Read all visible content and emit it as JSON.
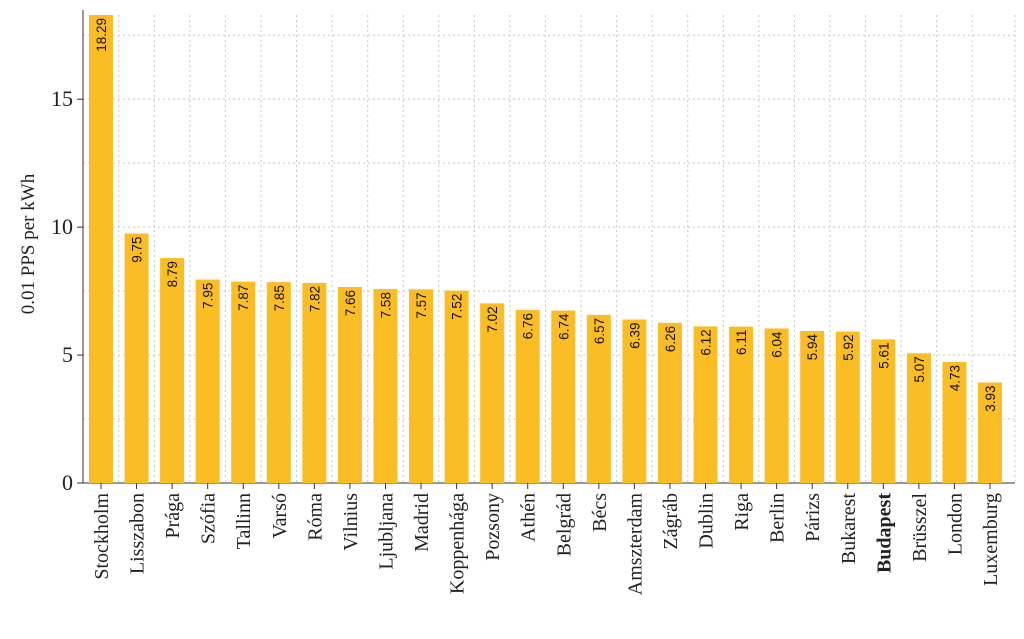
{
  "chart_data": {
    "type": "bar",
    "ylabel": "0.01 PPS per kWh",
    "ylim": [
      0,
      18.29
    ],
    "yticks": [
      0,
      5,
      10,
      15
    ],
    "grid": true,
    "bar_color": "#fbbd26",
    "highlight_category": "Budapest",
    "categories": [
      "Stockholm",
      "Lisszabon",
      "Prága",
      "Szófia",
      "Tallinn",
      "Varsó",
      "Róma",
      "Vilnius",
      "Ljubljana",
      "Madrid",
      "Koppenhága",
      "Pozsony",
      "Athén",
      "Belgrád",
      "Bécs",
      "Amszterdam",
      "Zágráb",
      "Dublin",
      "Riga",
      "Berlin",
      "Párizs",
      "Bukarest",
      "Budapest",
      "Brüsszel",
      "London",
      "Luxemburg"
    ],
    "values": [
      18.29,
      9.75,
      8.79,
      7.95,
      7.87,
      7.85,
      7.82,
      7.66,
      7.58,
      7.57,
      7.52,
      7.02,
      6.76,
      6.74,
      6.57,
      6.39,
      6.26,
      6.12,
      6.11,
      6.04,
      5.94,
      5.92,
      5.61,
      5.07,
      4.73,
      3.93
    ],
    "value_labels": [
      "18.29",
      "9.75",
      "8.79",
      "7.95",
      "7.87",
      "7.85",
      "7.82",
      "7.66",
      "7.58",
      "7.57",
      "7.52",
      "7.02",
      "6.76",
      "6.74",
      "6.57",
      "6.39",
      "6.26",
      "6.12",
      "6.11",
      "6.04",
      "5.94",
      "5.92",
      "5.61",
      "5.07",
      "4.73",
      "3.93"
    ]
  }
}
